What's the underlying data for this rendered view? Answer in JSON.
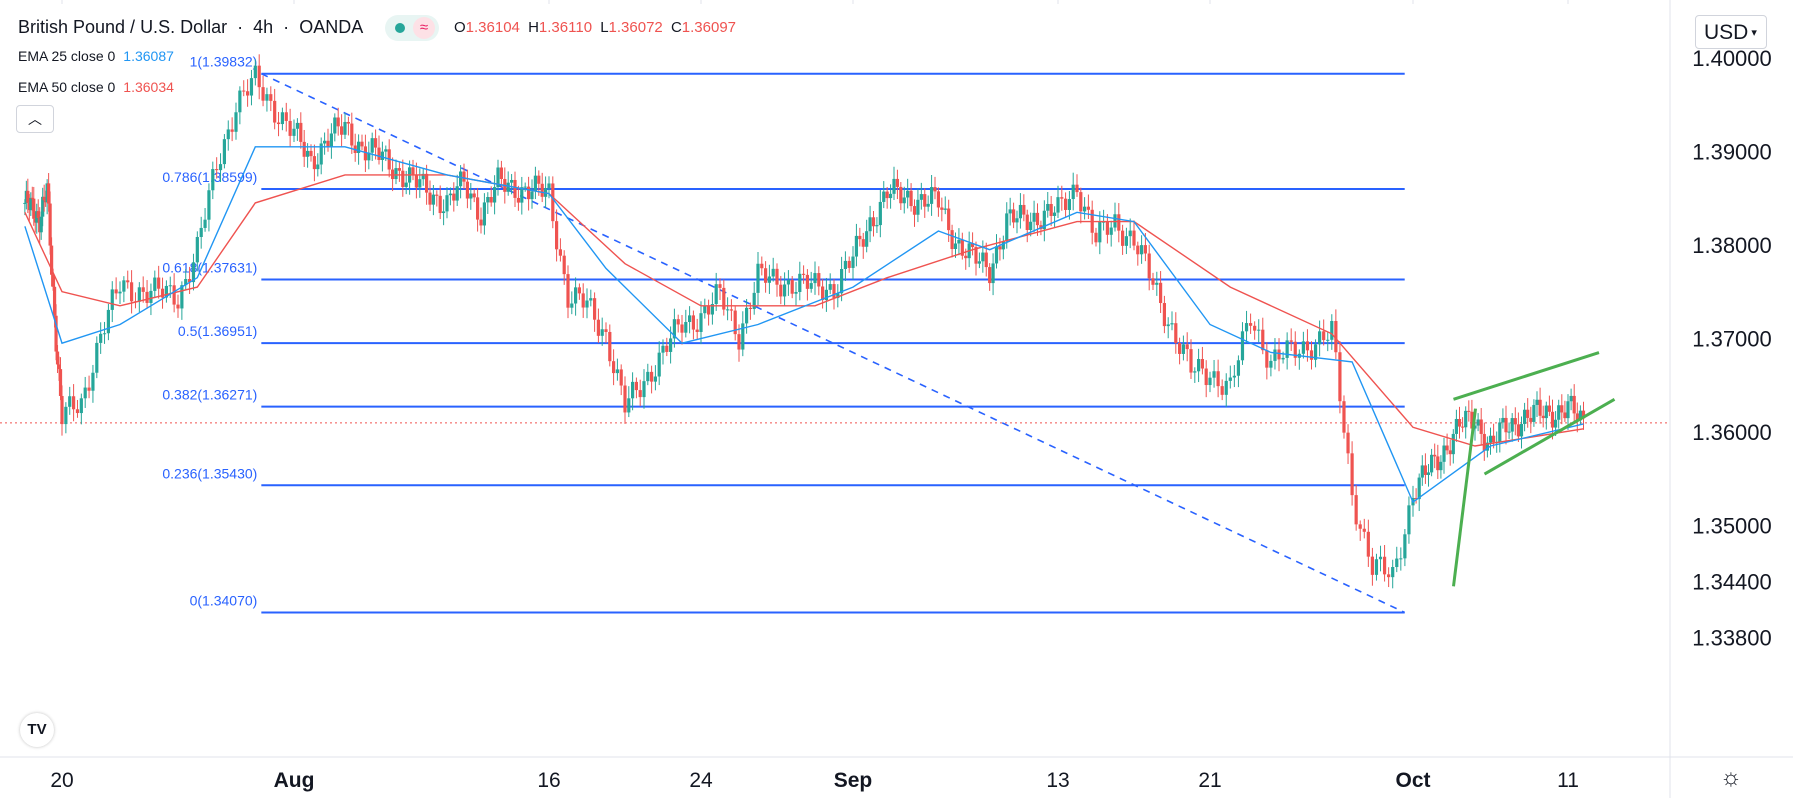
{
  "header": {
    "symbol": "British Pound / U.S. Dollar",
    "interval": "4h",
    "exchange": "OANDA",
    "ohlc": {
      "o_label": "O",
      "o": "1.36104",
      "h_label": "H",
      "h": "1.36110",
      "l_label": "L",
      "l": "1.36072",
      "c_label": "C",
      "c": "1.36097"
    },
    "indicators": [
      {
        "label": "EMA 25 close 0",
        "value": "1.36087",
        "color": "#2196f3"
      },
      {
        "label": "EMA 50 close 0",
        "value": "1.36034",
        "color": "#ef5350"
      }
    ],
    "collapse_icon": "chevron-up-icon",
    "wave_icon": "wave-icon"
  },
  "currency_button": {
    "label": "USD",
    "icon": "chevron-down-icon"
  },
  "footer": {
    "logo_text": "TV",
    "settings_icon": "gear-icon"
  },
  "colors": {
    "up": "#26a69a",
    "down": "#ef5350",
    "fib": "#2962ff",
    "ema25": "#2196f3",
    "ema50": "#ef5350",
    "wedge": "#4caf50"
  },
  "chart_data": {
    "type": "candlestick",
    "instrument": "GBP/USD",
    "y_ticks": [
      "1.40000",
      "1.39000",
      "1.38000",
      "1.37000",
      "1.36000",
      "1.35000",
      "1.34400",
      "1.33800"
    ],
    "x_ticks": [
      "20",
      "Aug",
      "16",
      "24",
      "Sep",
      "13",
      "21",
      "Oct",
      "11"
    ],
    "last_price": 1.36097,
    "fibonacci": [
      {
        "level": "1",
        "price": "1.39832"
      },
      {
        "level": "0.786",
        "price": "1.38599"
      },
      {
        "level": "0.618",
        "price": "1.37631"
      },
      {
        "level": "0.5",
        "price": "1.36951"
      },
      {
        "level": "0.382",
        "price": "1.36271"
      },
      {
        "level": "0.236",
        "price": "1.35430"
      },
      {
        "level": "0",
        "price": "1.34070"
      }
    ],
    "fib_trend": {
      "from": [
        "Jul 30",
        1.39832
      ],
      "to": [
        "Sep 30",
        1.3407
      ]
    },
    "approx_closes": [
      [
        "Jul 15",
        1.3845
      ],
      [
        "Jul 17",
        1.383
      ],
      [
        "Jul 18",
        1.3855
      ],
      [
        "Jul 19",
        1.3725
      ],
      [
        "Jul 20",
        1.3615
      ],
      [
        "Jul 21",
        1.363
      ],
      [
        "Jul 22",
        1.3705
      ],
      [
        "Jul 23",
        1.3755
      ],
      [
        "Jul 26",
        1.3745
      ],
      [
        "Jul 27",
        1.3795
      ],
      [
        "Jul 28",
        1.3885
      ],
      [
        "Jul 29",
        1.395
      ],
      [
        "Jul 30",
        1.3975
      ],
      [
        "Aug 2",
        1.389
      ],
      [
        "Aug 3",
        1.3915
      ],
      [
        "Aug 4",
        1.3925
      ],
      [
        "Aug 5",
        1.3905
      ],
      [
        "Aug 6",
        1.3895
      ],
      [
        "Aug 9",
        1.3855
      ],
      [
        "Aug 10",
        1.3845
      ],
      [
        "Aug 11",
        1.3865
      ],
      [
        "Aug 12",
        1.3835
      ],
      [
        "Aug 13",
        1.3865
      ],
      [
        "Aug 16",
        1.3855
      ],
      [
        "Aug 17",
        1.3745
      ],
      [
        "Aug 18",
        1.3735
      ],
      [
        "Aug 19",
        1.3705
      ],
      [
        "Aug 20",
        1.3625
      ],
      [
        "Aug 23",
        1.3715
      ],
      [
        "Aug 24",
        1.3725
      ],
      [
        "Aug 25",
        1.3745
      ],
      [
        "Aug 26",
        1.3705
      ],
      [
        "Aug 27",
        1.3765
      ],
      [
        "Aug 30",
        1.3755
      ],
      [
        "Aug 31",
        1.3755
      ],
      [
        "Sep 1",
        1.3785
      ],
      [
        "Sep 2",
        1.3825
      ],
      [
        "Sep 3",
        1.3855
      ],
      [
        "Sep 6",
        1.3845
      ],
      [
        "Sep 7",
        1.3805
      ],
      [
        "Sep 8",
        1.3785
      ],
      [
        "Sep 9",
        1.3775
      ],
      [
        "Sep 10",
        1.3825
      ],
      [
        "Sep 13",
        1.3835
      ],
      [
        "Sep 14",
        1.3865
      ],
      [
        "Sep 15",
        1.3805
      ],
      [
        "Sep 16",
        1.3825
      ],
      [
        "Sep 17",
        1.3805
      ],
      [
        "Sep 20",
        1.3665
      ],
      [
        "Sep 21",
        1.3665
      ],
      [
        "Sep 22",
        1.3645
      ],
      [
        "Sep 23",
        1.3725
      ],
      [
        "Sep 24",
        1.3675
      ],
      [
        "Sep 27",
        1.3705
      ],
      [
        "Sep 28",
        1.3535
      ],
      [
        "Sep 29",
        1.3455
      ],
      [
        "Sep 30",
        1.3445
      ],
      [
        "Oct 1",
        1.3535
      ],
      [
        "Oct 4",
        1.3605
      ],
      [
        "Oct 5",
        1.3615
      ],
      [
        "Oct 6",
        1.3585
      ],
      [
        "Oct 7",
        1.3605
      ],
      [
        "Oct 8",
        1.3615
      ],
      [
        "Oct 11",
        1.3625
      ],
      [
        "Oct 12",
        1.36097
      ]
    ],
    "ema25_approx": [
      [
        "Jul 15",
        1.382
      ],
      [
        "Jul 20",
        1.3695
      ],
      [
        "Jul 23",
        1.3715
      ],
      [
        "Jul 27",
        1.3765
      ],
      [
        "Jul 30",
        1.3905
      ],
      [
        "Aug 4",
        1.3905
      ],
      [
        "Aug 10",
        1.3875
      ],
      [
        "Aug 16",
        1.3855
      ],
      [
        "Aug 19",
        1.3775
      ],
      [
        "Aug 23",
        1.3695
      ],
      [
        "Aug 27",
        1.3715
      ],
      [
        "Sep 1",
        1.3755
      ],
      [
        "Sep 6",
        1.3815
      ],
      [
        "Sep 9",
        1.3795
      ],
      [
        "Sep 14",
        1.3835
      ],
      [
        "Sep 17",
        1.3825
      ],
      [
        "Sep 21",
        1.3715
      ],
      [
        "Sep 24",
        1.3685
      ],
      [
        "Sep 28",
        1.3675
      ],
      [
        "Oct 1",
        1.3525
      ],
      [
        "Oct 6",
        1.3585
      ],
      [
        "Oct 12",
        1.36087
      ]
    ],
    "ema50_approx": [
      [
        "Jul 15",
        1.3835
      ],
      [
        "Jul 20",
        1.375
      ],
      [
        "Jul 23",
        1.3735
      ],
      [
        "Jul 27",
        1.3755
      ],
      [
        "Jul 30",
        1.3845
      ],
      [
        "Aug 4",
        1.3875
      ],
      [
        "Aug 10",
        1.3875
      ],
      [
        "Aug 16",
        1.3855
      ],
      [
        "Aug 20",
        1.378
      ],
      [
        "Aug 24",
        1.3735
      ],
      [
        "Aug 30",
        1.3735
      ],
      [
        "Sep 3",
        1.3765
      ],
      [
        "Sep 8",
        1.3795
      ],
      [
        "Sep 14",
        1.3825
      ],
      [
        "Sep 17",
        1.3825
      ],
      [
        "Sep 22",
        1.3755
      ],
      [
        "Sep 27",
        1.3705
      ],
      [
        "Oct 1",
        1.3605
      ],
      [
        "Oct 5",
        1.3585
      ],
      [
        "Oct 12",
        1.36034
      ]
    ],
    "wedge_lines": [
      {
        "from": [
          "Oct 4",
          1.3435
        ],
        "to": [
          "Oct 4",
          1.3625
        ]
      },
      {
        "from": [
          "Oct 4",
          1.3635
        ],
        "to": [
          "Oct 13",
          1.3685
        ]
      },
      {
        "from": [
          "Oct 6",
          1.3555
        ],
        "to": [
          "Oct 14",
          1.3635
        ]
      }
    ]
  }
}
